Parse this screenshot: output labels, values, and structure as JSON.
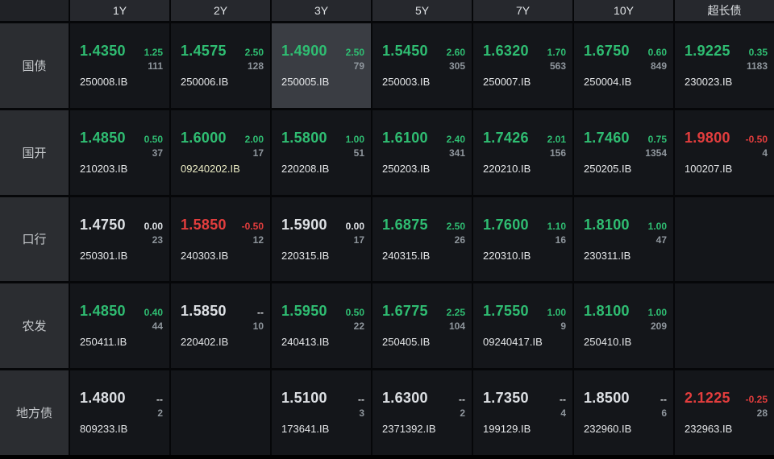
{
  "colors": {
    "up_green": "#2fbd72",
    "down_red": "#e23d3d",
    "flat_white": "#dde0e4",
    "volume_gray": "#8f969d",
    "code_default": "#e5e7e9",
    "code_special": "#eaebc4",
    "selected_cell_bg": "#3a3d43"
  },
  "table": {
    "columns": [
      "1Y",
      "2Y",
      "3Y",
      "5Y",
      "7Y",
      "10Y",
      "超长债"
    ],
    "rows": [
      {
        "label": "国债",
        "cells": [
          {
            "yield": "1.4350",
            "change": "1.25",
            "volume": "111",
            "code": "250008.IB",
            "trend": "up"
          },
          {
            "yield": "1.4575",
            "change": "2.50",
            "volume": "128",
            "code": "250006.IB",
            "trend": "up"
          },
          {
            "yield": "1.4900",
            "change": "2.50",
            "volume": "79",
            "code": "250005.IB",
            "trend": "up",
            "selected": true
          },
          {
            "yield": "1.5450",
            "change": "2.60",
            "volume": "305",
            "code": "250003.IB",
            "trend": "up"
          },
          {
            "yield": "1.6320",
            "change": "1.70",
            "volume": "563",
            "code": "250007.IB",
            "trend": "up"
          },
          {
            "yield": "1.6750",
            "change": "0.60",
            "volume": "849",
            "code": "250004.IB",
            "trend": "up"
          },
          {
            "yield": "1.9225",
            "change": "0.35",
            "volume": "1183",
            "code": "230023.IB",
            "trend": "up"
          }
        ]
      },
      {
        "label": "国开",
        "cells": [
          {
            "yield": "1.4850",
            "change": "0.50",
            "volume": "37",
            "code": "210203.IB",
            "trend": "up"
          },
          {
            "yield": "1.6000",
            "change": "2.00",
            "volume": "17",
            "code": "09240202.IB",
            "trend": "up",
            "code_tone": "special"
          },
          {
            "yield": "1.5800",
            "change": "1.00",
            "volume": "51",
            "code": "220208.IB",
            "trend": "up"
          },
          {
            "yield": "1.6100",
            "change": "2.40",
            "volume": "341",
            "code": "250203.IB",
            "trend": "up"
          },
          {
            "yield": "1.7426",
            "change": "2.01",
            "volume": "156",
            "code": "220210.IB",
            "trend": "up"
          },
          {
            "yield": "1.7460",
            "change": "0.75",
            "volume": "1354",
            "code": "250205.IB",
            "trend": "up"
          },
          {
            "yield": "1.9800",
            "change": "-0.50",
            "volume": "4",
            "code": "100207.IB",
            "trend": "down"
          }
        ]
      },
      {
        "label": "口行",
        "cells": [
          {
            "yield": "1.4750",
            "change": "0.00",
            "volume": "23",
            "code": "250301.IB",
            "trend": "flat"
          },
          {
            "yield": "1.5850",
            "change": "-0.50",
            "volume": "12",
            "code": "240303.IB",
            "trend": "down"
          },
          {
            "yield": "1.5900",
            "change": "0.00",
            "volume": "17",
            "code": "220315.IB",
            "trend": "flat"
          },
          {
            "yield": "1.6875",
            "change": "2.50",
            "volume": "26",
            "code": "240315.IB",
            "trend": "up"
          },
          {
            "yield": "1.7600",
            "change": "1.10",
            "volume": "16",
            "code": "220310.IB",
            "trend": "up"
          },
          {
            "yield": "1.8100",
            "change": "1.00",
            "volume": "47",
            "code": "230311.IB",
            "trend": "up"
          },
          null
        ]
      },
      {
        "label": "农发",
        "cells": [
          {
            "yield": "1.4850",
            "change": "0.40",
            "volume": "44",
            "code": "250411.IB",
            "trend": "up"
          },
          {
            "yield": "1.5850",
            "change": "--",
            "volume": "10",
            "code": "220402.IB",
            "trend": "flat"
          },
          {
            "yield": "1.5950",
            "change": "0.50",
            "volume": "22",
            "code": "240413.IB",
            "trend": "up"
          },
          {
            "yield": "1.6775",
            "change": "2.25",
            "volume": "104",
            "code": "250405.IB",
            "trend": "up"
          },
          {
            "yield": "1.7550",
            "change": "1.00",
            "volume": "9",
            "code": "09240417.IB",
            "trend": "up"
          },
          {
            "yield": "1.8100",
            "change": "1.00",
            "volume": "209",
            "code": "250410.IB",
            "trend": "up"
          },
          null
        ]
      },
      {
        "label": "地方债",
        "cells": [
          {
            "yield": "1.4800",
            "change": "--",
            "volume": "2",
            "code": "809233.IB",
            "trend": "flat"
          },
          null,
          {
            "yield": "1.5100",
            "change": "--",
            "volume": "3",
            "code": "173641.IB",
            "trend": "flat"
          },
          {
            "yield": "1.6300",
            "change": "--",
            "volume": "2",
            "code": "2371392.IB",
            "trend": "flat"
          },
          {
            "yield": "1.7350",
            "change": "--",
            "volume": "4",
            "code": "199129.IB",
            "trend": "flat"
          },
          {
            "yield": "1.8500",
            "change": "--",
            "volume": "6",
            "code": "232960.IB",
            "trend": "flat"
          },
          {
            "yield": "2.1225",
            "change": "-0.25",
            "volume": "28",
            "code": "232963.IB",
            "trend": "down"
          }
        ]
      }
    ]
  }
}
